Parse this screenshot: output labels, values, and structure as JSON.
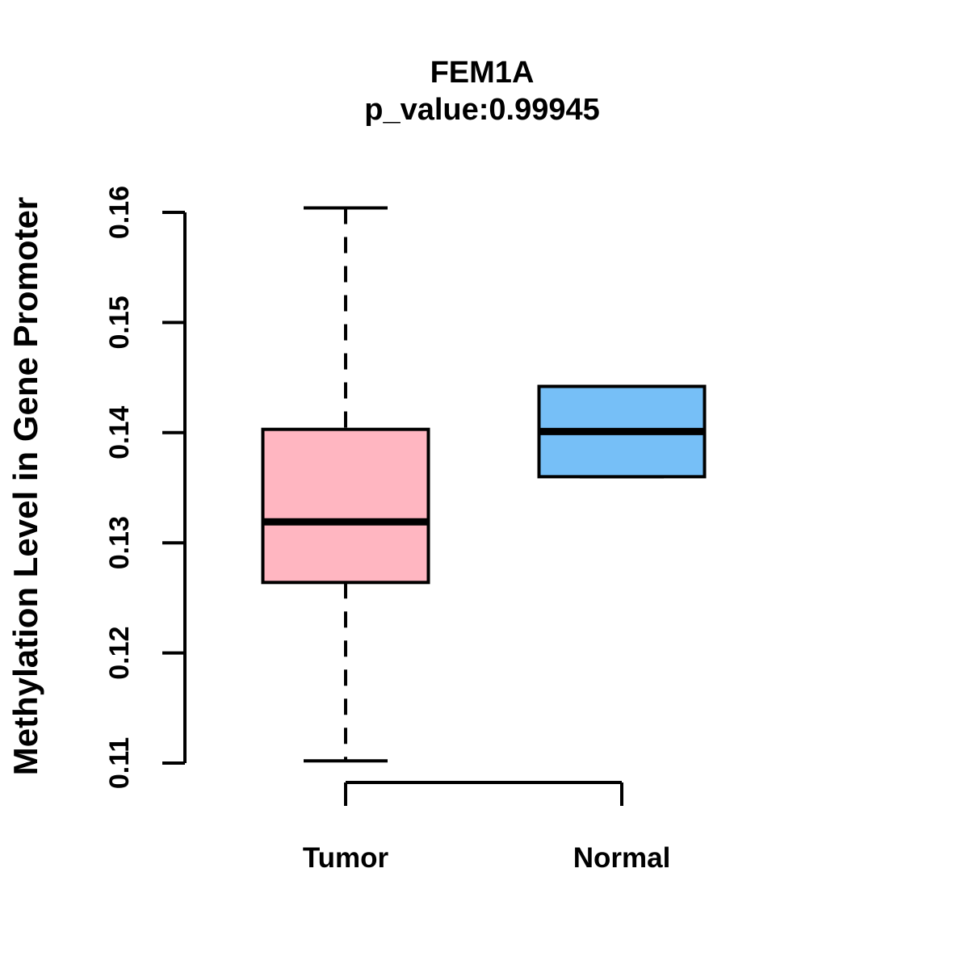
{
  "title": "FEM1A",
  "subtitle": "p_value:0.99945",
  "ylabel": "Methylation Level in Gene Promoter",
  "colors": {
    "tumor_fill": "#FFB6C1",
    "normal_fill": "#76BFF7",
    "line": "#000000",
    "background": "#FFFFFF"
  },
  "chart_data": {
    "type": "boxplot",
    "title": "FEM1A",
    "subtitle": "p_value:0.99945",
    "xlabel": "",
    "ylabel": "Methylation Level in Gene Promoter",
    "categories": [
      "Tumor",
      "Normal"
    ],
    "ylim": [
      0.11,
      0.16
    ],
    "yticks": [
      "0.11",
      "0.12",
      "0.13",
      "0.14",
      "0.15",
      "0.16"
    ],
    "grid": "off",
    "legend": "none",
    "series": [
      {
        "name": "Tumor",
        "color": "#FFB6C1",
        "whisker_low": 0.1102,
        "q1": 0.1264,
        "median": 0.1319,
        "q3": 0.1403,
        "whisker_high": 0.1604
      },
      {
        "name": "Normal",
        "color": "#76BFF7",
        "whisker_low": 0.136,
        "q1": 0.136,
        "median": 0.1401,
        "q3": 0.1442,
        "whisker_high": 0.1442
      }
    ]
  }
}
